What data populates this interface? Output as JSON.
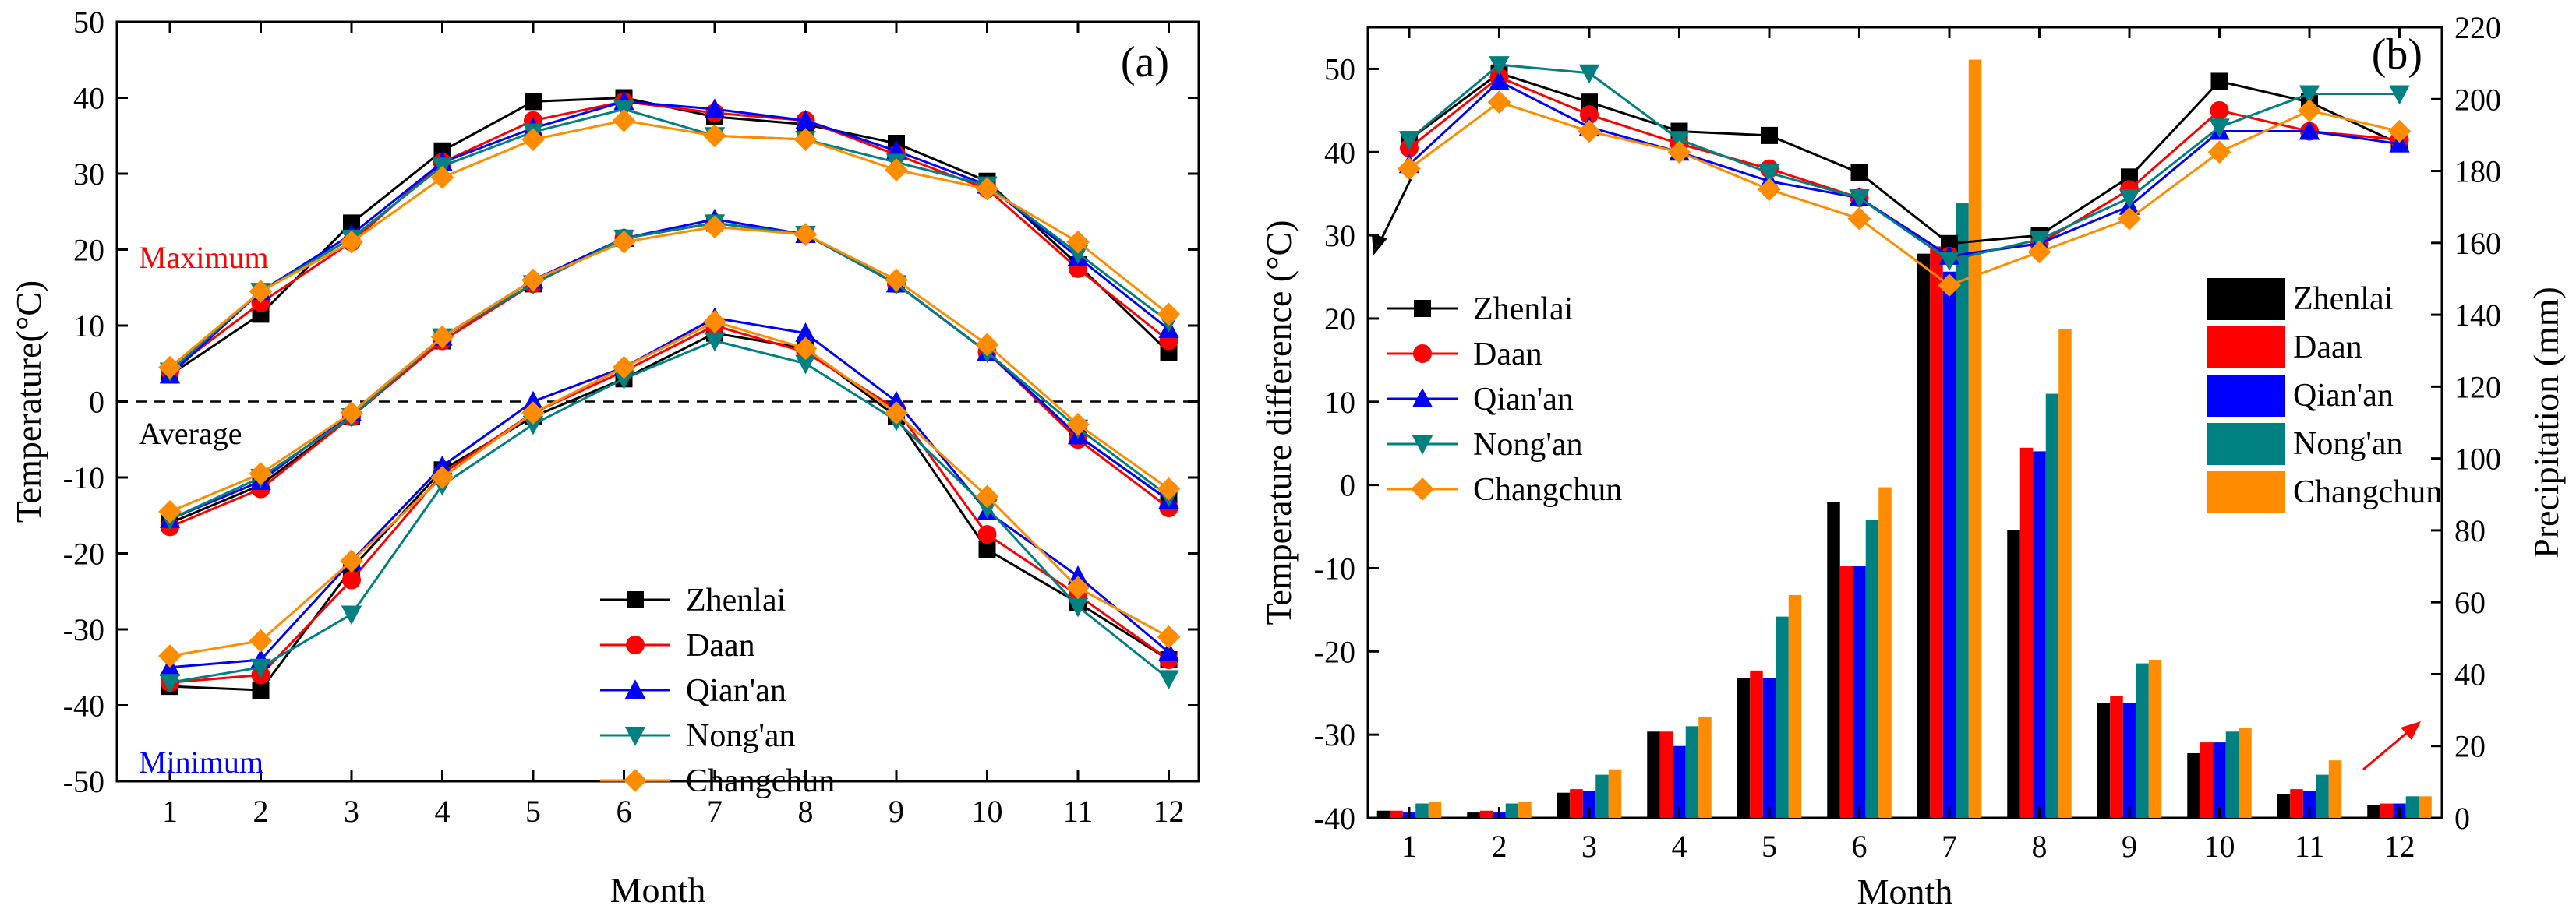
{
  "chart_data": [
    {
      "panel": "(a)",
      "type": "line",
      "xlabel": "Month",
      "ylabel": "Temperature(°C)",
      "ylim": [
        -50,
        50
      ],
      "yticks": [
        -50,
        -40,
        -30,
        -20,
        -10,
        0,
        10,
        20,
        30,
        40,
        50
      ],
      "x": [
        1,
        2,
        3,
        4,
        5,
        6,
        7,
        8,
        9,
        10,
        11,
        12
      ],
      "zero_line": "dashed",
      "annotations": [
        {
          "text": "Maximum",
          "color": "#ff0000"
        },
        {
          "text": "Average",
          "color": "#000000"
        },
        {
          "text": "Minimum",
          "color": "#0000ff"
        }
      ],
      "series": [
        {
          "name": "Zhenlai",
          "color": "#000000",
          "marker": "square",
          "max": [
            3.5,
            11.5,
            23.5,
            33,
            39.5,
            40,
            37.5,
            36.5,
            34,
            29,
            18,
            6.5
          ],
          "avg": [
            -16,
            -11,
            -2,
            8,
            15.5,
            21.5,
            23.5,
            22,
            15.5,
            6.5,
            -4.5,
            -13
          ],
          "min": [
            -37.5,
            -38,
            -22,
            -9,
            -2,
            3,
            9,
            7,
            -2,
            -19.5,
            -26.5,
            -34
          ]
        },
        {
          "name": "Daan",
          "color": "#ff0000",
          "marker": "circle",
          "max": [
            4,
            13,
            21,
            31.5,
            37,
            39.5,
            38,
            37,
            32.5,
            28,
            17.5,
            8
          ],
          "avg": [
            -16.5,
            -11.5,
            -2,
            8,
            15.5,
            21.5,
            23.5,
            22,
            15.5,
            6.5,
            -5,
            -14
          ],
          "min": [
            -37,
            -36,
            -23.5,
            -9.5,
            -1.5,
            4,
            10,
            6.5,
            -1,
            -17.5,
            -25.5,
            -34
          ]
        },
        {
          "name": "Qian'an",
          "color": "#0000ff",
          "marker": "triangle",
          "max": [
            3.5,
            14.5,
            22,
            31.5,
            36,
            39.5,
            38.5,
            37,
            33,
            28.5,
            19,
            9.5
          ],
          "avg": [
            -15.5,
            -10.5,
            -1.5,
            8.5,
            16,
            21.5,
            24,
            22,
            15.5,
            6.5,
            -4.5,
            -13
          ],
          "min": [
            -35,
            -34,
            -21,
            -8.5,
            0,
            4.5,
            11,
            9,
            0,
            -14.5,
            -23,
            -33
          ]
        },
        {
          "name": "Nong'an",
          "color": "#008080",
          "marker": "triangle-down",
          "max": [
            4,
            14.5,
            21.5,
            31,
            35.5,
            38.5,
            35,
            34.5,
            31.5,
            28.5,
            19.5,
            10.5
          ],
          "avg": [
            -15.5,
            -10,
            -2,
            8.5,
            15.5,
            21.5,
            23.5,
            22,
            15.5,
            6.5,
            -3.5,
            -12.5
          ],
          "min": [
            -37,
            -35,
            -28,
            -11,
            -3,
            3,
            8,
            5,
            -2.5,
            -14,
            -27,
            -36.5
          ]
        },
        {
          "name": "Changchun",
          "color": "#ff8c00",
          "marker": "diamond",
          "max": [
            4.5,
            14.5,
            21,
            29.5,
            34.5,
            37,
            35,
            34.5,
            30.5,
            28,
            21,
            11.5
          ],
          "avg": [
            -14.5,
            -9.5,
            -1.5,
            8.5,
            16,
            21,
            23,
            22,
            16,
            7.5,
            -3,
            -11.5
          ],
          "min": [
            -33.5,
            -31.5,
            -21,
            -10,
            -1.5,
            4.5,
            10.5,
            7,
            -1.5,
            -12.5,
            -24.5,
            -31
          ]
        }
      ]
    },
    {
      "panel": "(b)",
      "type": "line+bar",
      "xlabel": "Month",
      "ylabel": "Temperature difference (°C)",
      "y2label": "Precipitation (mm)",
      "ylim": [
        -40,
        55
      ],
      "yticks": [
        -40,
        -30,
        -20,
        -10,
        0,
        10,
        20,
        30,
        40,
        50
      ],
      "y2lim": [
        0,
        220
      ],
      "y2ticks": [
        0,
        20,
        40,
        60,
        80,
        100,
        120,
        140,
        160,
        180,
        200,
        220
      ],
      "x": [
        1,
        2,
        3,
        4,
        5,
        6,
        7,
        8,
        9,
        10,
        11,
        12
      ],
      "series": [
        {
          "name": "Zhenlai",
          "color": "#000000",
          "marker": "square",
          "temp_diff": [
            41.5,
            49.5,
            46,
            42.5,
            42,
            37.5,
            29,
            30,
            37,
            48.5,
            46,
            41
          ],
          "precipitation": [
            2,
            1.5,
            7,
            24,
            39,
            88,
            157,
            80,
            32,
            18,
            6.5,
            3.5
          ]
        },
        {
          "name": "Daan",
          "color": "#ff0000",
          "marker": "circle",
          "temp_diff": [
            40.5,
            49,
            44.5,
            41,
            38,
            34.5,
            27.5,
            29,
            35.5,
            45,
            42.5,
            41.5
          ],
          "precipitation": [
            2,
            2,
            8,
            24,
            41,
            70,
            159,
            103,
            34,
            21,
            8,
            4
          ]
        },
        {
          "name": "Qian'an",
          "color": "#0000ff",
          "marker": "triangle",
          "temp_diff": [
            38.5,
            48.5,
            43,
            40,
            36.5,
            34.5,
            27.5,
            29,
            33.5,
            42.5,
            42.5,
            41
          ],
          "precipitation": [
            1.5,
            1.5,
            7.5,
            20,
            39,
            70,
            152,
            102,
            32,
            21,
            7.5,
            4
          ]
        },
        {
          "name": "Nong'an",
          "color": "#008080",
          "marker": "triangle-down",
          "temp_diff": [
            41.5,
            50.5,
            49.5,
            41.5,
            37.5,
            34.5,
            27,
            29.5,
            34.5,
            43,
            47,
            47
          ],
          "precipitation": [
            4,
            4,
            12,
            25.5,
            56,
            83,
            171,
            118,
            43,
            24,
            12,
            6
          ]
        },
        {
          "name": "Changchun",
          "color": "#ff8c00",
          "marker": "diamond",
          "temp_diff": [
            38,
            46,
            42.5,
            40,
            35.5,
            32,
            24,
            28,
            32,
            40,
            45,
            42.5
          ],
          "precipitation": [
            4.5,
            4.5,
            13.5,
            28,
            62,
            92,
            211,
            136,
            44,
            25,
            16,
            6
          ]
        }
      ]
    }
  ]
}
